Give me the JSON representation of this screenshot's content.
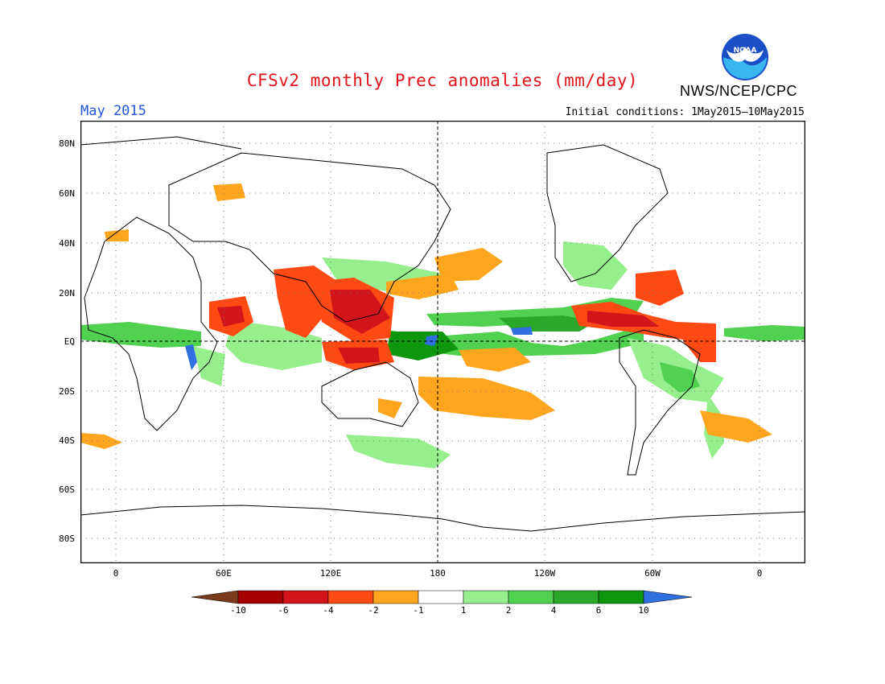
{
  "title": "CFSv2 monthly Prec anomalies (mm/day)",
  "agency": "NWS/NCEP/CPC",
  "logo_text": "NOAA",
  "month": "May 2015",
  "initial_conditions": "Initial conditions: 1May2015–10May2015",
  "lat_labels": [
    "80N",
    "60N",
    "40N",
    "20N",
    "EQ",
    "20S",
    "40S",
    "60S",
    "80S"
  ],
  "lon_labels": [
    "0",
    "60E",
    "120E",
    "180",
    "120W",
    "60W",
    "0"
  ],
  "colorbar": {
    "labels": [
      "-10",
      "-6",
      "-4",
      "-2",
      "-1",
      "1",
      "2",
      "4",
      "6",
      "10"
    ],
    "colors": [
      "#7a3a1c",
      "#a50000",
      "#d2141b",
      "#ff4a14",
      "#ffa51e",
      "#ffffff",
      "#96ee8c",
      "#50d250",
      "#2aa82a",
      "#0f960f",
      "#2f6fe0"
    ]
  },
  "map_legend_colors": {
    "land_outline": "#000000",
    "equator": "#000000",
    "grid": "#777777"
  }
}
